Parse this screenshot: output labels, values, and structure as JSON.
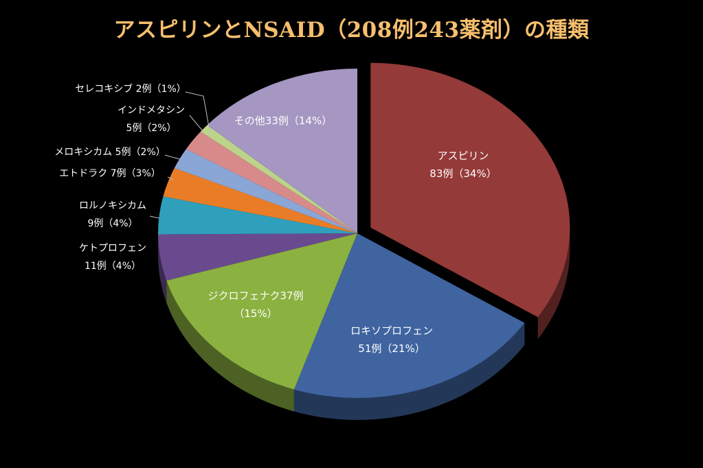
{
  "chart_data": {
    "type": "pie",
    "title": "アスピリンとNSAID（208例243薬剤）の種類",
    "slices": [
      {
        "name": "アスピリン",
        "value": 83,
        "percent": "34%",
        "label_lines": [
          "アスピリン",
          "83例（34%）"
        ],
        "color": "#943a38"
      },
      {
        "name": "ロキソプロフェン",
        "value": 51,
        "percent": "21%",
        "label_lines": [
          "ロキソプロフェン",
          "51例（21%）"
        ],
        "color": "#3f64a0"
      },
      {
        "name": "ジクロフェナク",
        "value": 37,
        "percent": "15%",
        "label_lines": [
          "ジクロフェナク37例",
          "（15%）"
        ],
        "color": "#8bb140"
      },
      {
        "name": "ケトプロフェン",
        "value": 11,
        "percent": "4%",
        "label_lines": [
          "ケトプロフェン",
          "11例（4%）"
        ],
        "color": "#6a4a8e"
      },
      {
        "name": "ロルノキシカム",
        "value": 9,
        "percent": "4%",
        "label_lines": [
          "ロルノキシカム",
          "9例（4%）"
        ],
        "color": "#2f9fbc"
      },
      {
        "name": "エトドラク",
        "value": 7,
        "percent": "3%",
        "label_lines": [
          "エトドラク 7例（3%）"
        ],
        "color": "#e97d27"
      },
      {
        "name": "メロキシカム",
        "value": 5,
        "percent": "2%",
        "label_lines": [
          "メロキシカム 5例（2%）"
        ],
        "color": "#8aa6d6"
      },
      {
        "name": "インドメタシン",
        "value": 5,
        "percent": "2%",
        "label_lines": [
          "インドメタシン",
          "5例（2%）"
        ],
        "color": "#d88a8a"
      },
      {
        "name": "セレコキシブ",
        "value": 2,
        "percent": "1%",
        "label_lines": [
          "セレコキシブ 2例（1%）"
        ],
        "color": "#bcd48a"
      },
      {
        "name": "その他",
        "value": 33,
        "percent": "14%",
        "label_lines": [
          "その他33例（14%）"
        ],
        "color": "#a596c2"
      }
    ],
    "exploded": [
      "アスピリン"
    ],
    "legend": "none"
  }
}
